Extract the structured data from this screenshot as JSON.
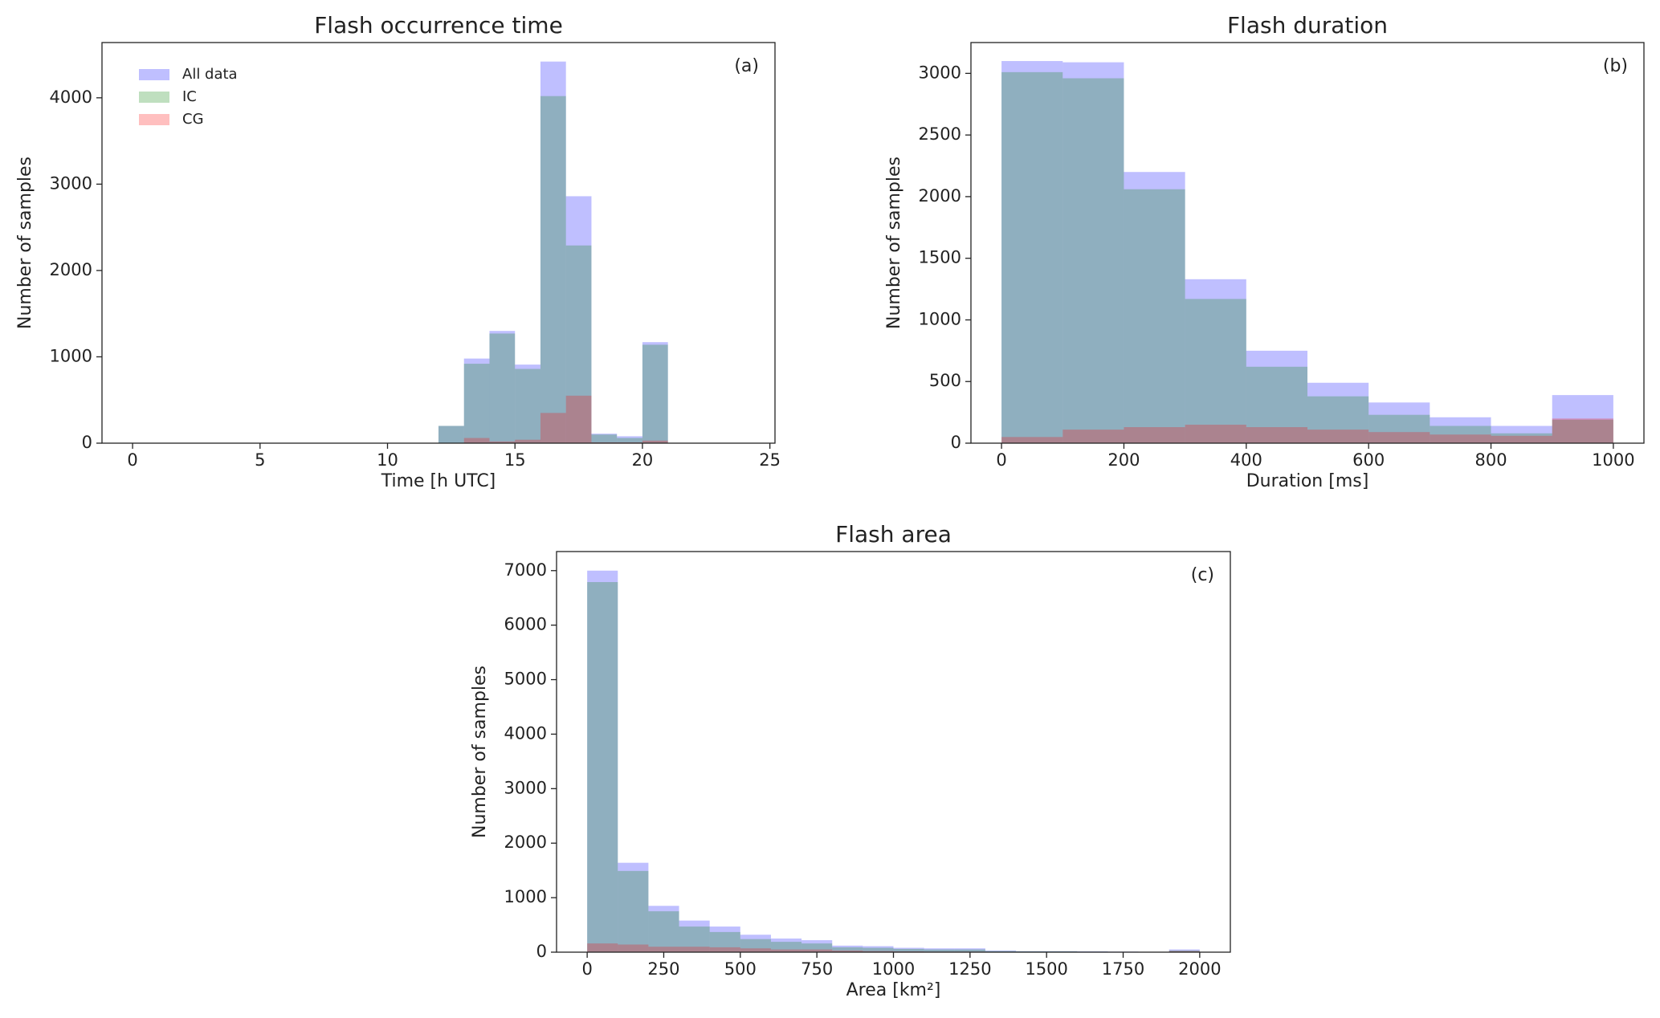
{
  "chart_data": [
    {
      "type": "histogram",
      "title": "Flash occurrence time",
      "xlabel": "Time [h UTC]",
      "ylabel": "Number of samples",
      "annotation": "(a)",
      "bins": [
        12,
        13,
        14,
        15,
        16,
        17,
        18,
        19,
        20,
        21
      ],
      "series": [
        {
          "name": "All data",
          "color": "#0000ff",
          "values": [
            200,
            980,
            1300,
            910,
            4420,
            2860,
            110,
            80,
            1170
          ]
        },
        {
          "name": "IC",
          "color": "#008000",
          "values": [
            200,
            920,
            1270,
            860,
            4020,
            2290,
            100,
            60,
            1140
          ]
        },
        {
          "name": "CG",
          "color": "#ff0000",
          "values": [
            0,
            60,
            20,
            40,
            350,
            550,
            10,
            10,
            30
          ]
        }
      ],
      "alpha": 0.25,
      "legend": "upper left",
      "xlim": [
        -1.2,
        25.2
      ],
      "ylim": [
        0,
        4640
      ],
      "xticks": [
        0,
        5,
        10,
        15,
        20,
        25
      ],
      "yticks": [
        0,
        1000,
        2000,
        3000,
        4000
      ]
    },
    {
      "type": "histogram",
      "title": "Flash duration",
      "xlabel": "Duration [ms]",
      "ylabel": "Number of samples",
      "annotation": "(b)",
      "bins": [
        0,
        100,
        200,
        300,
        400,
        500,
        600,
        700,
        800,
        900,
        1000
      ],
      "series": [
        {
          "color": "#0000ff",
          "values": [
            3100,
            3090,
            2200,
            1330,
            750,
            490,
            330,
            210,
            140,
            390
          ]
        },
        {
          "color": "#008000",
          "values": [
            3010,
            2960,
            2060,
            1170,
            620,
            380,
            230,
            140,
            80,
            190
          ]
        },
        {
          "color": "#ff0000",
          "values": [
            50,
            110,
            130,
            150,
            130,
            110,
            90,
            70,
            60,
            200
          ]
        }
      ],
      "alpha": 0.25,
      "xlim": [
        -50,
        1050
      ],
      "ylim": [
        0,
        3250
      ],
      "xticks": [
        0,
        200,
        400,
        600,
        800,
        1000
      ],
      "yticks": [
        0,
        500,
        1000,
        1500,
        2000,
        2500,
        3000
      ]
    },
    {
      "type": "histogram",
      "title": "Flash area",
      "xlabel": "Area [km²]",
      "ylabel": "Number of samples",
      "annotation": "(c)",
      "bins": [
        0,
        100,
        200,
        300,
        400,
        500,
        600,
        700,
        800,
        900,
        1000,
        1100,
        1200,
        1300,
        1400,
        1500,
        1600,
        1700,
        1800,
        1900,
        2000
      ],
      "series": [
        {
          "color": "#0000ff",
          "values": [
            7000,
            1640,
            850,
            580,
            470,
            320,
            250,
            220,
            120,
            110,
            80,
            70,
            70,
            30,
            20,
            20,
            15,
            10,
            5,
            50
          ]
        },
        {
          "color": "#008000",
          "values": [
            6790,
            1490,
            750,
            470,
            370,
            240,
            190,
            160,
            90,
            80,
            60,
            50,
            50,
            20,
            15,
            15,
            10,
            8,
            3,
            30
          ]
        },
        {
          "color": "#ff0000",
          "values": [
            160,
            140,
            100,
            100,
            90,
            70,
            50,
            50,
            30,
            20,
            15,
            10,
            10,
            5,
            5,
            5,
            3,
            2,
            1,
            20
          ]
        }
      ],
      "alpha": 0.25,
      "xlim": [
        -100,
        2100
      ],
      "ylim": [
        0,
        7350
      ],
      "xticks": [
        0,
        250,
        500,
        750,
        1000,
        1250,
        1500,
        1750,
        2000
      ],
      "yticks": [
        0,
        1000,
        2000,
        3000,
        4000,
        5000,
        6000,
        7000
      ]
    }
  ]
}
